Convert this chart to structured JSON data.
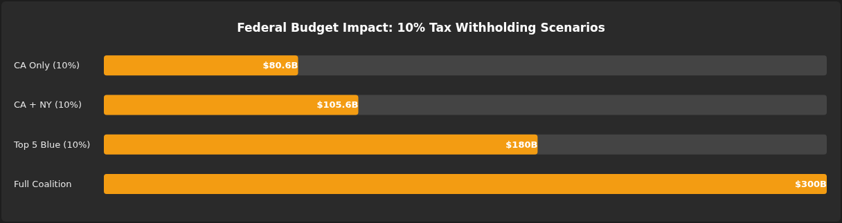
{
  "chart_data": {
    "type": "bar",
    "orientation": "horizontal",
    "title": "Federal Budget Impact: 10% Tax Withholding Scenarios",
    "categories": [
      "CA Only (10%)",
      "CA + NY (10%)",
      "Top 5 Blue (10%)",
      "Full Coalition"
    ],
    "values": [
      80.6,
      105.6,
      180,
      300
    ],
    "color": "#f39c12",
    "value_labels": [
      "$80.6B",
      "$105.6B",
      "$180B",
      "$300B"
    ]
  }
}
